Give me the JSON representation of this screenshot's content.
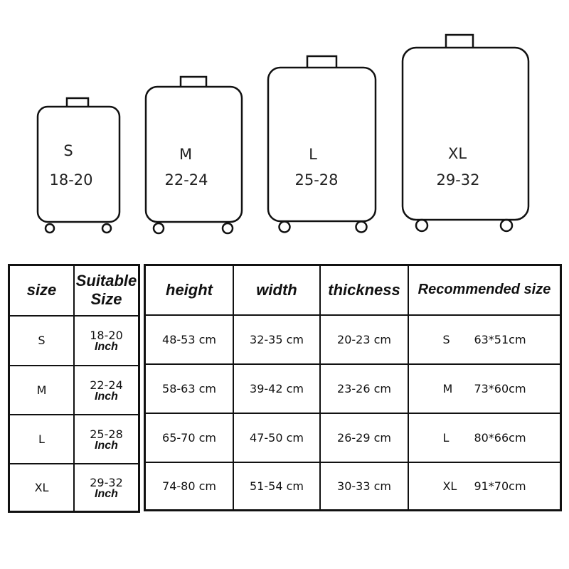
{
  "suitcases": [
    {
      "size": "S",
      "range": "18-20"
    },
    {
      "size": "M",
      "range": "22-24"
    },
    {
      "size": "L",
      "range": "25-28"
    },
    {
      "size": "XL",
      "range": "29-32"
    }
  ],
  "left_table": {
    "headers": [
      "size",
      "Suitable Size"
    ],
    "unit": "Inch",
    "rows": [
      {
        "size": "S",
        "range": "18-20"
      },
      {
        "size": "M",
        "range": "22-24"
      },
      {
        "size": "L",
        "range": "25-28"
      },
      {
        "size": "XL",
        "range": "29-32"
      }
    ]
  },
  "right_table": {
    "headers": [
      "height",
      "width",
      "thickness",
      "Recommended size"
    ],
    "rows": [
      {
        "height": "48-53 cm",
        "width": "32-35 cm",
        "thickness": "20-23 cm",
        "rec_size": "S",
        "rec_dims": "63*51cm"
      },
      {
        "height": "58-63 cm",
        "width": "39-42 cm",
        "thickness": "23-26 cm",
        "rec_size": "M",
        "rec_dims": "73*60cm"
      },
      {
        "height": "65-70 cm",
        "width": "47-50 cm",
        "thickness": "26-29 cm",
        "rec_size": "L",
        "rec_dims": "80*66cm"
      },
      {
        "height": "74-80 cm",
        "width": "51-54 cm",
        "thickness": "30-33 cm",
        "rec_size": "XL",
        "rec_dims": "91*70cm"
      }
    ]
  }
}
